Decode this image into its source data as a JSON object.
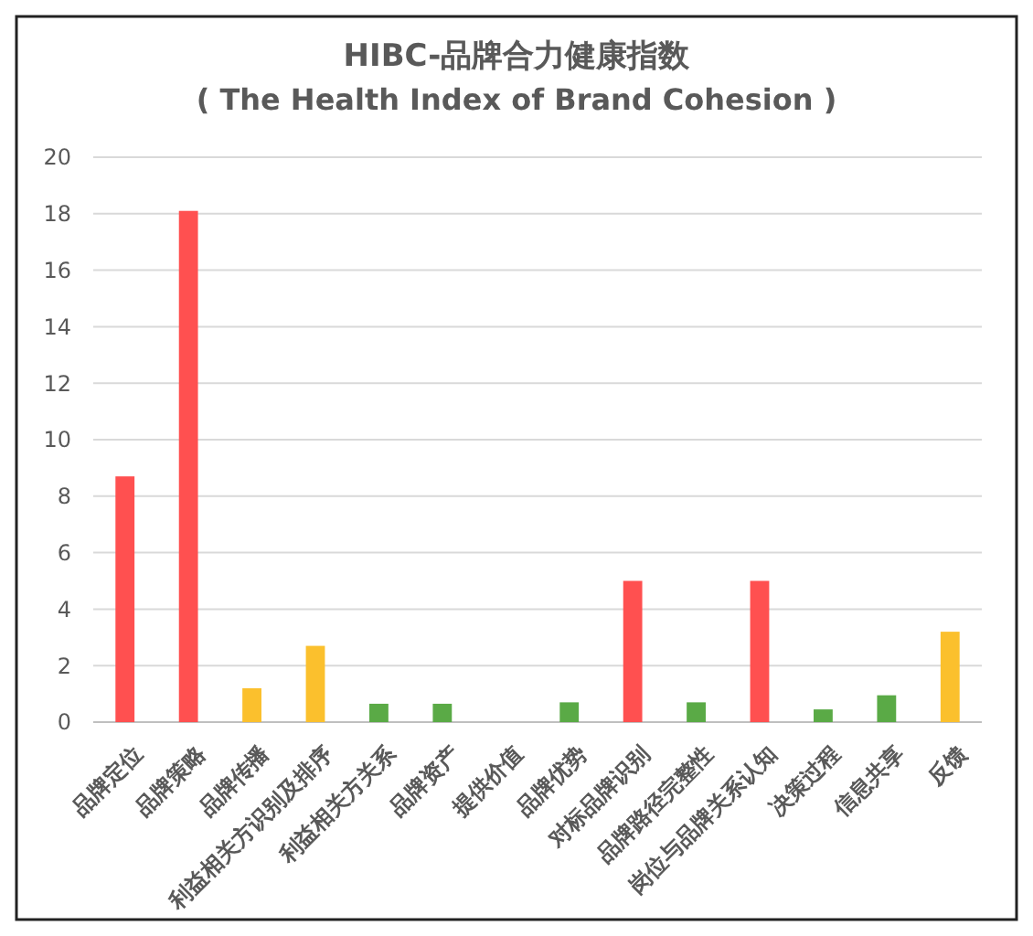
{
  "chart_data": {
    "type": "bar",
    "title": "HIBC-品牌合力健康指数",
    "subtitle": "( The Health Index of Brand Cohesion )",
    "categories": [
      "品牌定位",
      "品牌策略",
      "品牌传播",
      "利益相关方识别及排序",
      "利益相关方关系",
      "品牌资产",
      "提供价值",
      "品牌优势",
      "对标品牌识别",
      "品牌路径完整性",
      "岗位与品牌关系认知",
      "决策过程",
      "信息共享",
      "反馈"
    ],
    "values": [
      8.7,
      18.1,
      1.2,
      2.7,
      0.65,
      0.65,
      0,
      0.7,
      5,
      0.7,
      5,
      0.45,
      0.95,
      3.2
    ],
    "colors": [
      "#ff5050",
      "#ff5050",
      "#fbc02d",
      "#fbc02d",
      "#5aaa46",
      "#5aaa46",
      "#5aaa46",
      "#5aaa46",
      "#ff5050",
      "#5aaa46",
      "#ff5050",
      "#5aaa46",
      "#5aaa46",
      "#fbc02d"
    ],
    "ylim": [
      0,
      20
    ],
    "yticks": [
      0,
      2,
      4,
      6,
      8,
      10,
      12,
      14,
      16,
      18,
      20
    ],
    "grid": "y"
  }
}
